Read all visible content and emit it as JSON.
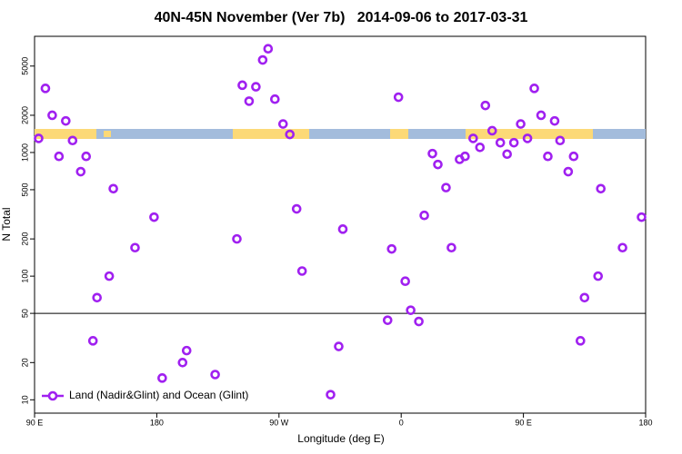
{
  "chart_data": {
    "type": "scatter",
    "title": "40N-45N November (Ver 7b)   2014-09-06 to 2017-03-31",
    "xlabel": "Longitude (deg E)",
    "ylabel": "N Total",
    "xlim": [
      90,
      540
    ],
    "xticks": [
      {
        "value": 90,
        "label": "90 E"
      },
      180,
      {
        "value": 270,
        "label": "90 W"
      },
      {
        "value": 360,
        "label": "0"
      },
      {
        "value": 450,
        "label": "90 E"
      },
      {
        "value": 540,
        "label": "180"
      }
    ],
    "ylim": [
      7.8,
      8700
    ],
    "log_scale": true,
    "yticks": [
      10,
      20,
      50,
      100,
      200,
      500,
      1000,
      2000,
      5000
    ],
    "hline": 50,
    "legend": "bottom-left",
    "series": [
      {
        "name": "Land (Nadir&Glint) and Ocean (Glint)",
        "color": "#a020f0",
        "x": [
          93,
          98,
          103,
          108,
          113,
          118,
          124,
          128,
          133,
          136,
          145,
          148,
          164,
          178,
          184,
          199,
          202,
          223,
          239,
          243,
          248,
          253,
          258,
          262,
          267,
          273,
          278,
          283,
          287,
          308,
          314,
          317,
          350,
          353,
          358,
          363,
          367,
          373,
          377,
          383,
          387,
          393,
          397,
          403,
          407,
          413,
          418,
          422,
          427,
          433,
          438,
          443,
          448,
          453,
          458,
          463,
          468,
          473,
          477,
          483,
          487,
          492,
          495,
          505,
          507,
          523,
          537
        ],
        "values": [
          1300,
          3300,
          2000,
          930,
          1800,
          1250,
          700,
          930,
          30,
          67,
          100,
          510,
          170,
          300,
          15,
          20,
          25,
          16,
          200,
          3500,
          2600,
          3400,
          5600,
          6900,
          2700,
          1700,
          1400,
          350,
          110,
          11,
          27,
          240,
          44,
          166,
          2800,
          91,
          53,
          43,
          310,
          980,
          800,
          520,
          170,
          880,
          930,
          1300,
          1100,
          2400,
          1500,
          1200,
          970,
          1200,
          1700,
          1300,
          3300,
          2000,
          930,
          1800,
          1250,
          700,
          930,
          30,
          67,
          100,
          510,
          170,
          300
        ]
      }
    ]
  }
}
